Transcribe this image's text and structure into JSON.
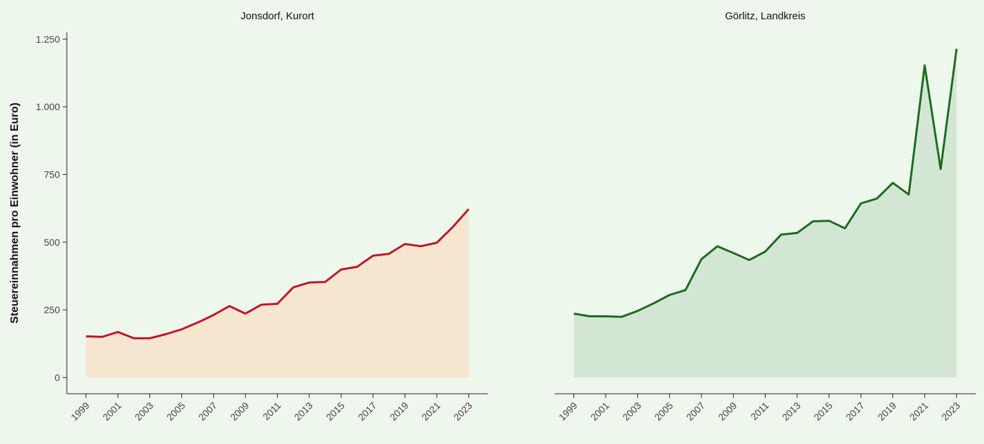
{
  "chart_data": [
    {
      "type": "area",
      "title": "Jonsdorf, Kurort",
      "ylabel": "Steuereinnahmen pro Einwohner (in Euro)",
      "x": [
        1999,
        2000,
        2001,
        2002,
        2003,
        2004,
        2005,
        2006,
        2007,
        2008,
        2009,
        2010,
        2011,
        2012,
        2013,
        2014,
        2015,
        2016,
        2017,
        2018,
        2019,
        2020,
        2021,
        2022,
        2023
      ],
      "values": [
        152,
        150,
        168,
        145,
        145,
        160,
        178,
        203,
        231,
        264,
        236,
        269,
        272,
        333,
        351,
        353,
        399,
        409,
        450,
        457,
        493,
        485,
        498,
        556,
        622
      ],
      "color": "#c0142b",
      "fill": "#f6e5cf",
      "xlim": [
        1997.8,
        2024.2
      ],
      "xticks": [
        1999,
        2001,
        2003,
        2005,
        2007,
        2009,
        2011,
        2013,
        2015,
        2017,
        2019,
        2021,
        2023
      ],
      "ylim": [
        -60,
        1275
      ],
      "yticks": [
        0,
        250,
        500,
        750,
        {
          "value": 1000,
          "label": "1.000"
        },
        {
          "value": 1250,
          "label": "1.250"
        }
      ]
    },
    {
      "type": "area",
      "title": "Görlitz, Landkreis",
      "x": [
        1999,
        2000,
        2001,
        2002,
        2003,
        2004,
        2005,
        2006,
        2007,
        2008,
        2009,
        2010,
        2011,
        2012,
        2013,
        2014,
        2015,
        2016,
        2017,
        2018,
        2019,
        2020,
        2021,
        2022,
        2023
      ],
      "values": [
        236,
        226,
        226,
        224,
        246,
        274,
        305,
        323,
        437,
        485,
        460,
        434,
        465,
        528,
        534,
        577,
        579,
        551,
        643,
        661,
        719,
        676,
        1153,
        770,
        1214
      ],
      "color": "#1b6b1e",
      "fill": "#d3e6d3",
      "xlim": [
        1997.8,
        2024.2
      ],
      "xticks": [
        1999,
        2001,
        2003,
        2005,
        2007,
        2009,
        2011,
        2013,
        2015,
        2017,
        2019,
        2021,
        2023
      ],
      "ylim": [
        -60,
        1275
      ]
    }
  ]
}
